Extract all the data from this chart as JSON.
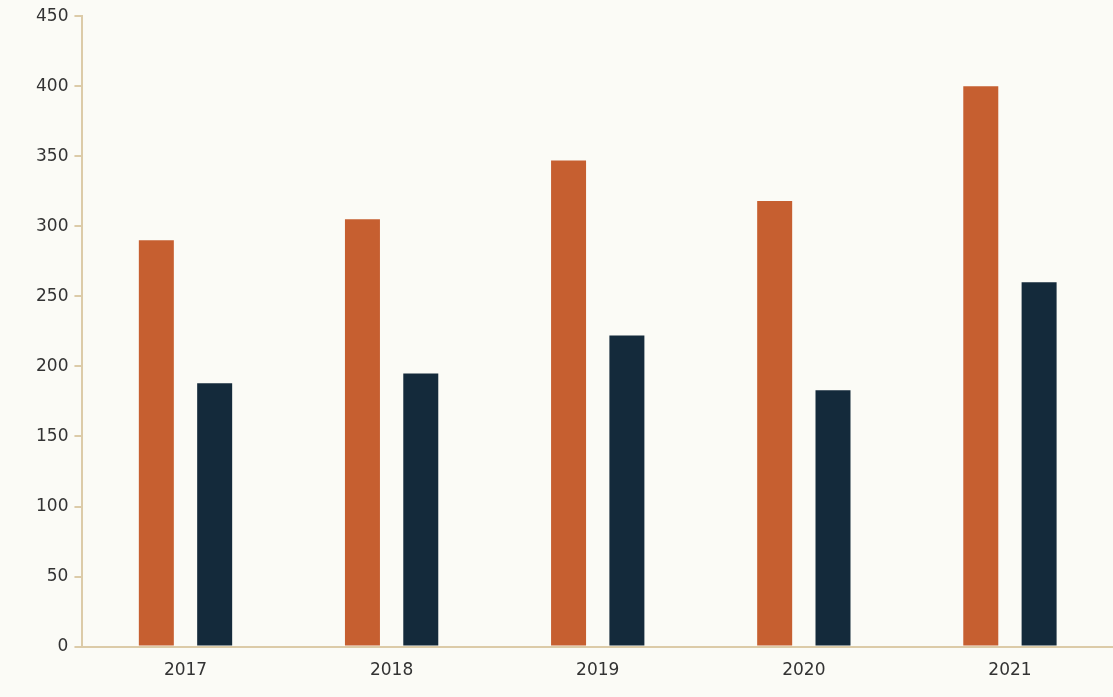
{
  "chart_data": {
    "type": "bar",
    "categories": [
      "2017",
      "2018",
      "2019",
      "2020",
      "2021"
    ],
    "series": [
      {
        "color": "#c65f30",
        "values": [
          290,
          305,
          347,
          318,
          400
        ]
      },
      {
        "color": "#142a3b",
        "values": [
          188,
          195,
          222,
          183,
          260
        ]
      }
    ],
    "ylim": [
      0,
      450
    ],
    "yticks": [
      0,
      50,
      100,
      150,
      200,
      250,
      300,
      350,
      400,
      450
    ],
    "grid": false,
    "legend": false
  }
}
